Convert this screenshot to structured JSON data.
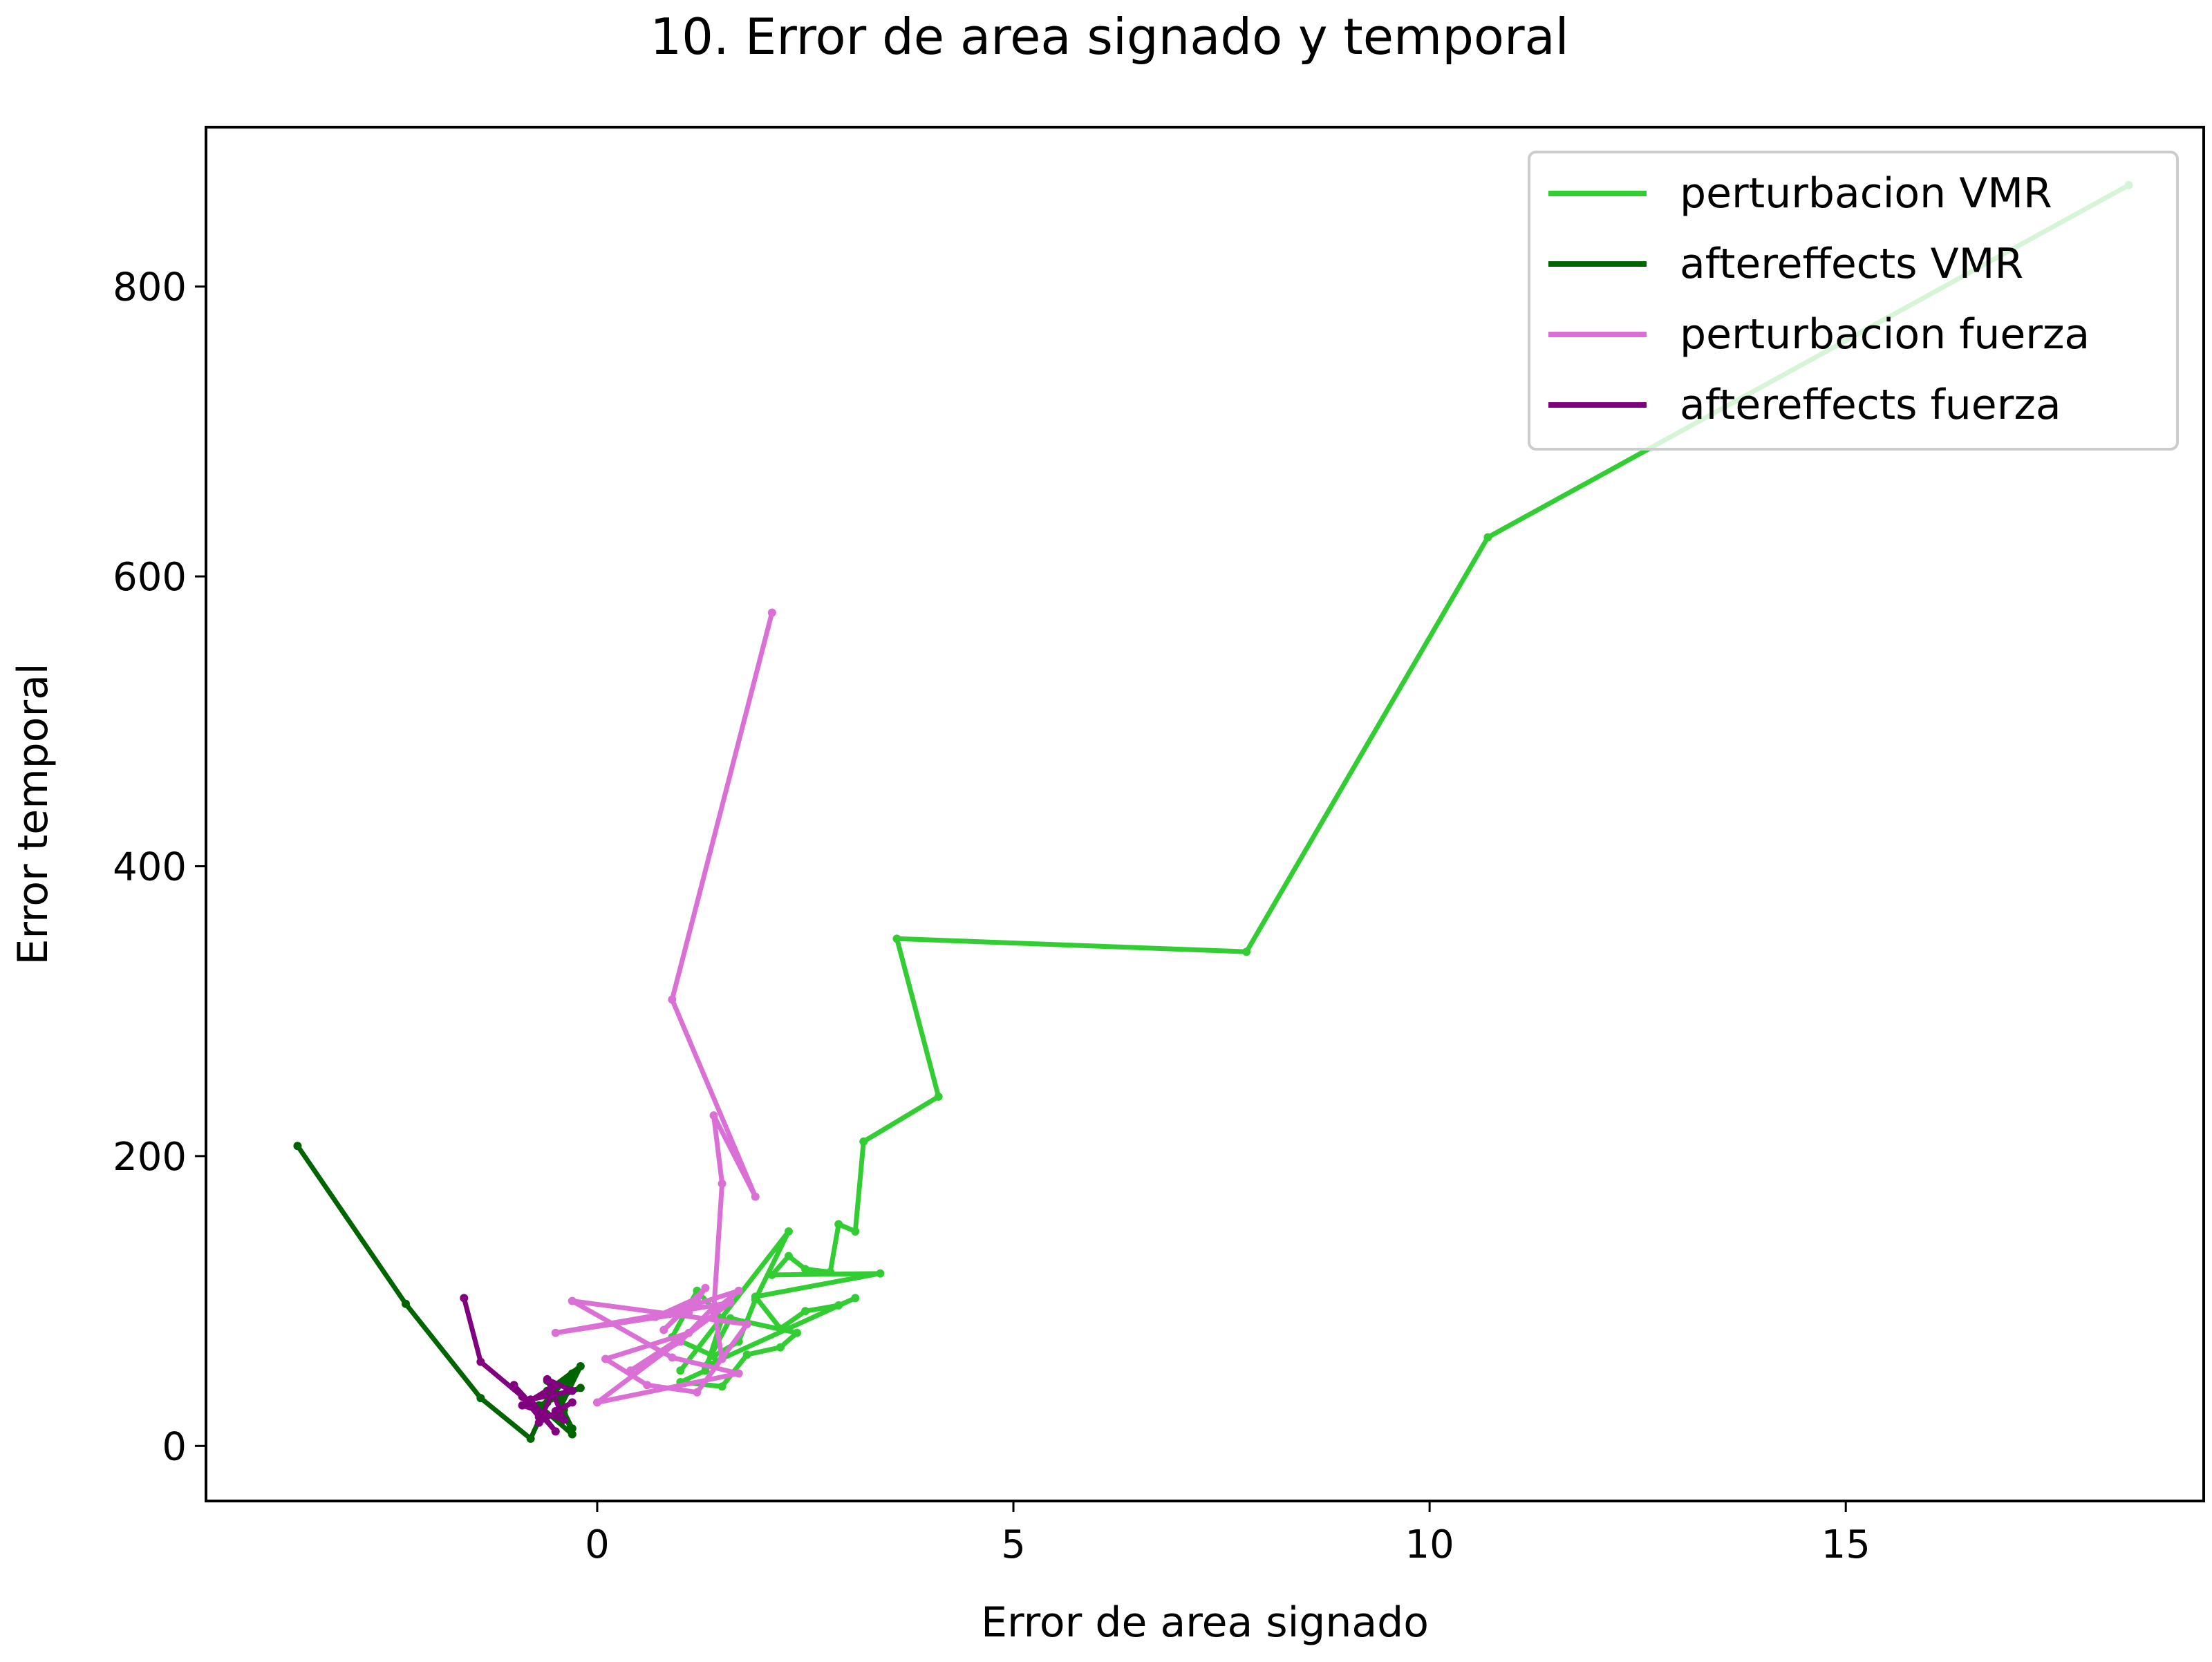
{
  "chart_data": {
    "type": "line",
    "title": "10. Error de area signado y temporal",
    "xlabel": "Error de area signado",
    "ylabel": "Error temporal",
    "xlim": [
      -4.7,
      19.3
    ],
    "ylim": [
      -38,
      910
    ],
    "xticks": [
      0,
      5,
      10,
      15
    ],
    "yticks": [
      0,
      200,
      400,
      600,
      800
    ],
    "xtick_labels": [
      "0",
      "5",
      "10",
      "15"
    ],
    "ytick_labels": [
      "0",
      "200",
      "400",
      "600",
      "800"
    ],
    "grid": false,
    "legend_position": "top-right",
    "series": [
      {
        "name": "perturbacion VMR",
        "color": "#32cd32",
        "x": [
          18.4,
          10.7,
          7.8,
          3.6,
          4.1,
          3.2,
          3.1,
          2.9,
          2.8,
          2.5,
          2.3,
          2.1,
          3.4,
          1.9,
          2.2,
          2.5,
          2.9,
          3.1,
          1.3,
          1.6,
          2.4,
          2.2,
          1.8,
          1.5,
          1.0,
          1.3,
          1.5,
          1.2,
          0.9,
          1.4,
          1.7,
          1.9,
          2.3,
          1.0
        ],
        "y": [
          870,
          627,
          341,
          350,
          241,
          210,
          148,
          153,
          120,
          122,
          131,
          118,
          119,
          103,
          81,
          93,
          97,
          102,
          55,
          88,
          78,
          68,
          63,
          41,
          44,
          52,
          88,
          107,
          75,
          62,
          72,
          101,
          148,
          52
        ]
      },
      {
        "name": "aftereffects VMR",
        "color": "#006400",
        "x": [
          -3.6,
          -2.3,
          -1.4,
          -0.8,
          -0.6,
          -0.4,
          -0.3,
          -0.5,
          -0.2,
          -0.6,
          -0.4,
          -0.3,
          -0.7,
          -0.2,
          -0.5,
          -0.3,
          -0.6
        ],
        "y": [
          207,
          98,
          33,
          5,
          30,
          45,
          50,
          20,
          55,
          38,
          25,
          8,
          28,
          40,
          35,
          12,
          45
        ]
      },
      {
        "name": "perturbacion fuerza",
        "color": "#da70d6",
        "x": [
          2.1,
          0.9,
          1.9,
          1.4,
          1.5,
          1.4,
          1.7,
          0.7,
          1.2,
          0.8,
          1.3,
          1.1,
          -0.5,
          1.6,
          0.0,
          1.7,
          0.9,
          -0.3,
          1.8,
          1.2,
          0.6,
          0.1,
          1.1,
          0.4,
          1.0,
          1.4,
          1.5
        ],
        "y": [
          575,
          308,
          172,
          228,
          181,
          93,
          107,
          89,
          102,
          80,
          109,
          92,
          78,
          99,
          30,
          50,
          61,
          100,
          84,
          37,
          42,
          60,
          78,
          52,
          72,
          96,
          60
        ]
      },
      {
        "name": "aftereffects fuerza",
        "color": "#800080",
        "x": [
          -1.6,
          -1.4,
          -0.9,
          -0.7,
          -1.0,
          -0.5,
          -0.8,
          -0.3,
          -0.6,
          -0.4,
          -0.9,
          -0.5,
          -0.7,
          -0.3,
          -0.5
        ],
        "y": [
          102,
          58,
          34,
          20,
          42,
          10,
          32,
          38,
          46,
          18,
          28,
          42,
          16,
          30,
          24
        ]
      }
    ]
  }
}
